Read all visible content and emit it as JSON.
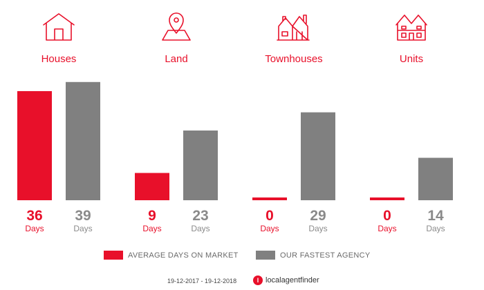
{
  "chart_data": {
    "type": "bar",
    "categories": [
      "Houses",
      "Land",
      "Townhouses",
      "Units"
    ],
    "category_icons": [
      "house-icon",
      "land-pin-icon",
      "townhouses-icon",
      "units-icon"
    ],
    "series": [
      {
        "name": "AVERAGE DAYS ON MARKET",
        "color": "#e8102a",
        "values": [
          36,
          9,
          0,
          0
        ]
      },
      {
        "name": "OUR FASTEST AGENCY",
        "color": "#808080",
        "values": [
          39,
          23,
          29,
          14
        ]
      }
    ],
    "unit_label": "Days",
    "ylim": [
      0,
      41
    ],
    "grid": false,
    "legend_position": "bottom"
  },
  "legend": {
    "average_label": "AVERAGE DAYS ON MARKET",
    "fastest_label": "OUR FASTEST AGENCY"
  },
  "footer": {
    "date_range": "19-12-2017 - 19-12-2018",
    "brand_text": "localagentfinder"
  },
  "colors": {
    "accent": "#e8102a",
    "grey": "#808080"
  }
}
